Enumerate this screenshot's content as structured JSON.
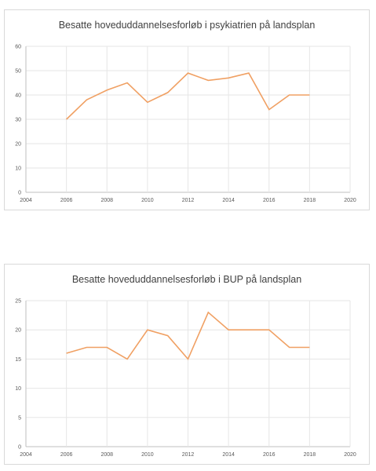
{
  "chart_data": [
    {
      "type": "line",
      "title": "Besatte hoveduddannelsesforløb i psykiatrien på landsplan",
      "xlabel": "",
      "ylabel": "",
      "xlim": [
        2004,
        2020
      ],
      "ylim": [
        0,
        60
      ],
      "xticks": [
        2004,
        2006,
        2008,
        2010,
        2012,
        2014,
        2016,
        2018,
        2020
      ],
      "yticks": [
        0,
        10,
        20,
        30,
        40,
        50,
        60
      ],
      "grid": "horizontal and vertical",
      "series": [
        {
          "x": [
            2006,
            2007,
            2008,
            2009,
            2010,
            2011,
            2012,
            2013,
            2014,
            2015,
            2016,
            2017,
            2018
          ],
          "values": [
            30,
            38,
            42,
            45,
            37,
            41,
            49,
            46,
            47,
            49,
            34,
            40,
            40
          ],
          "color": "#f0a063"
        }
      ]
    },
    {
      "type": "line",
      "title": "Besatte hoveduddannelsesforløb i BUP på landsplan",
      "xlabel": "",
      "ylabel": "",
      "xlim": [
        2004,
        2020
      ],
      "ylim": [
        0,
        25
      ],
      "xticks": [
        2004,
        2006,
        2008,
        2010,
        2012,
        2014,
        2016,
        2018,
        2020
      ],
      "yticks": [
        0,
        5,
        10,
        15,
        20,
        25
      ],
      "grid": "horizontal and vertical",
      "series": [
        {
          "x": [
            2006,
            2007,
            2008,
            2009,
            2010,
            2011,
            2012,
            2013,
            2014,
            2015,
            2016,
            2017,
            2018
          ],
          "values": [
            16,
            17,
            17,
            15,
            20,
            19,
            15,
            23,
            20,
            20,
            20,
            17,
            17
          ],
          "color": "#f0a063"
        }
      ]
    }
  ]
}
